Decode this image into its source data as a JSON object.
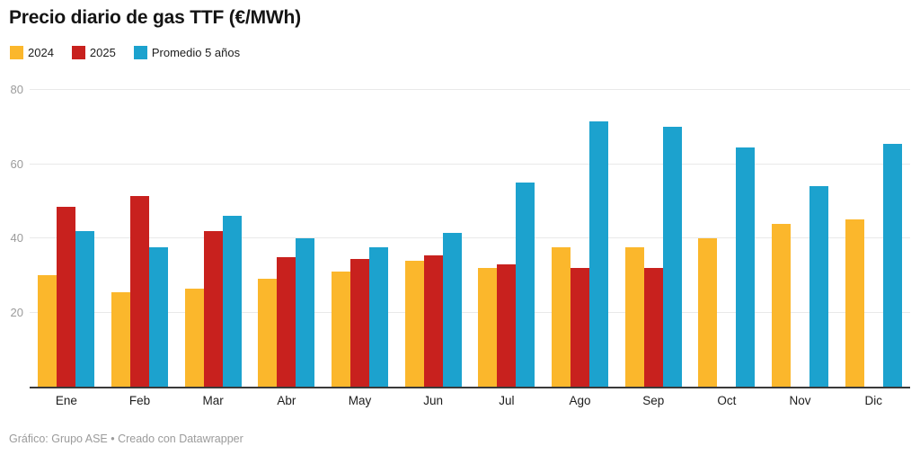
{
  "header": {
    "title": "Precio diario de gas TTF (€/MWh)"
  },
  "legend": {
    "items": [
      {
        "label": "2024",
        "color": "#FBB72C"
      },
      {
        "label": "2025",
        "color": "#C8211E"
      },
      {
        "label": "Promedio 5 años",
        "color": "#1CA2CE"
      }
    ]
  },
  "footer": {
    "text": "Gráfico: Grupo ASE • Creado con Datawrapper"
  },
  "chart_data": {
    "type": "bar",
    "title": "Precio diario de gas TTF (€/MWh)",
    "xlabel": "",
    "ylabel": "",
    "categories": [
      "Ene",
      "Feb",
      "Mar",
      "Abr",
      "May",
      "Jun",
      "Jul",
      "Ago",
      "Sep",
      "Oct",
      "Nov",
      "Dic"
    ],
    "series": [
      {
        "name": "2024",
        "color": "#FBB72C",
        "values": [
          30,
          25.5,
          26.5,
          29,
          31,
          34,
          32,
          37.5,
          37.5,
          40,
          44,
          45
        ]
      },
      {
        "name": "2025",
        "color": "#C8211E",
        "values": [
          48.5,
          51.5,
          42,
          35,
          34.5,
          35.5,
          33,
          32,
          32,
          null,
          null,
          null
        ]
      },
      {
        "name": "Promedio 5 años",
        "color": "#1CA2CE",
        "values": [
          42,
          37.5,
          46,
          40,
          37.5,
          41.5,
          55,
          71.5,
          70,
          64.5,
          54,
          65.5
        ]
      }
    ],
    "ylim": [
      0,
      80
    ],
    "y_ticks": [
      20,
      40,
      60,
      80
    ],
    "grid": true,
    "legend_position": "top",
    "styles": {
      "gridline_color": "#e9e9e9",
      "axis_line_color": "#3a3a3a",
      "y_tick_color": "#9b9b9b",
      "x_tick_color": "#1d1d1d"
    }
  }
}
